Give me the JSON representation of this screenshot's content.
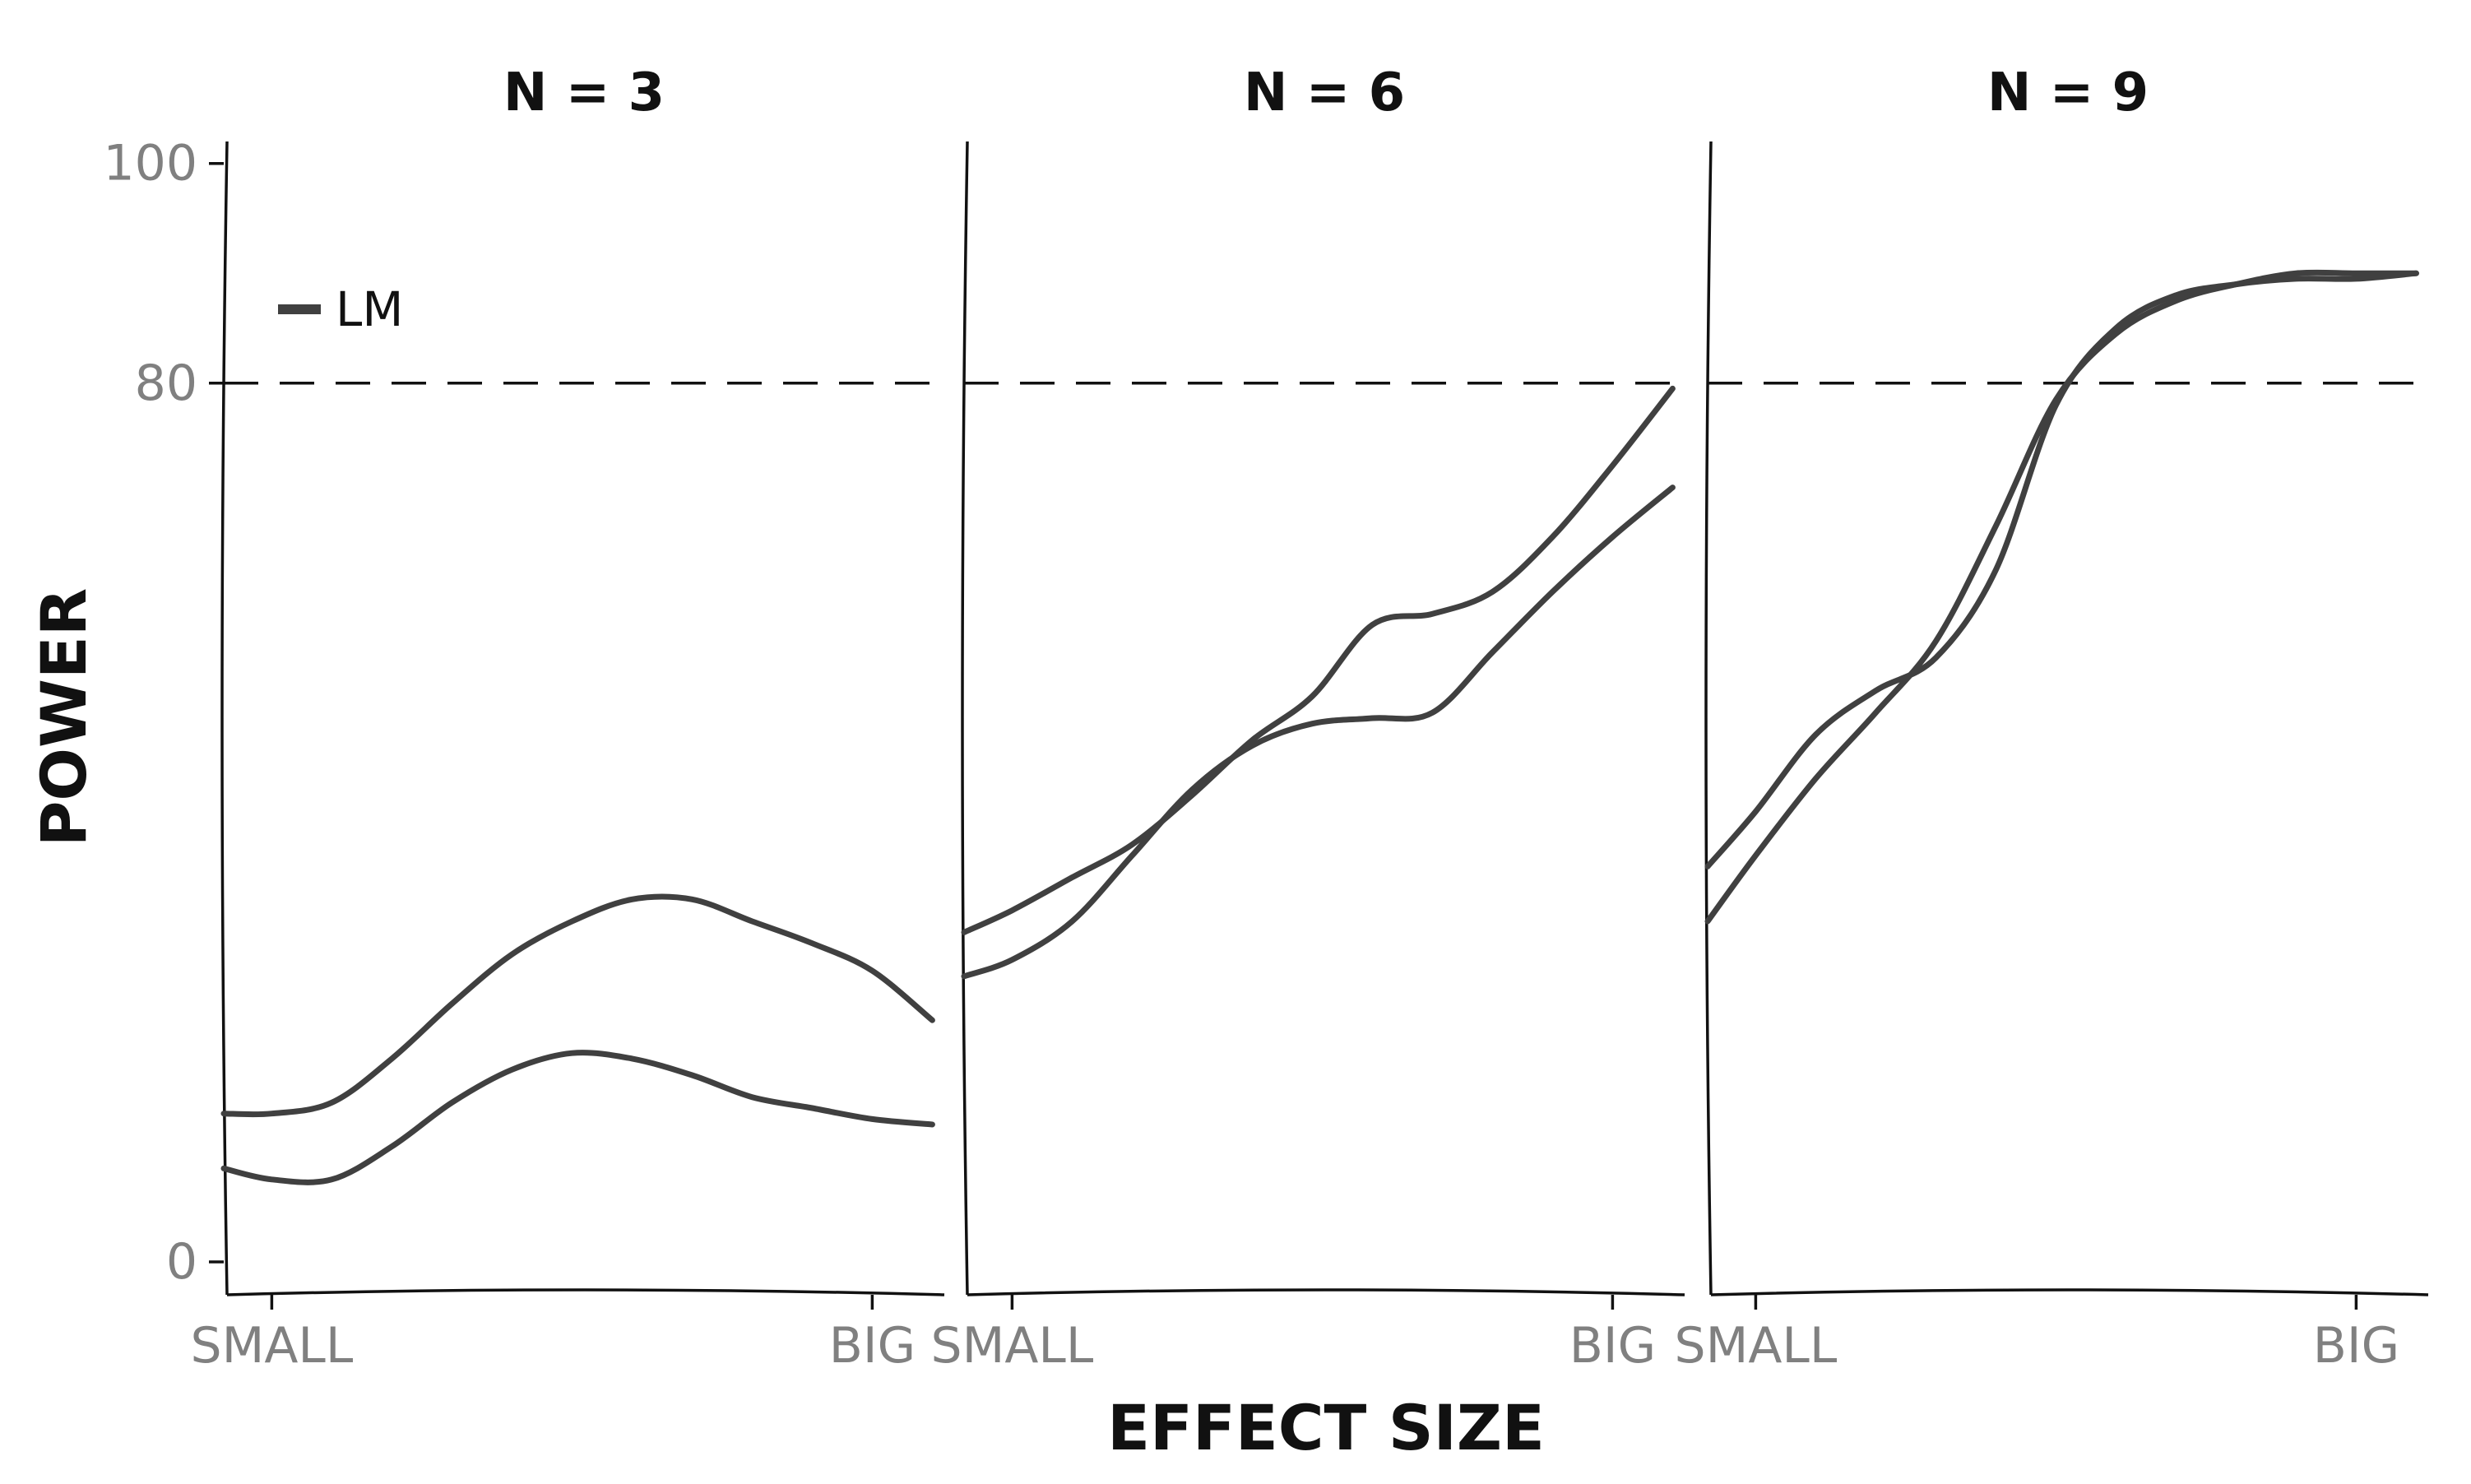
{
  "chart_data": {
    "type": "line",
    "xlabel": "EFFECT SIZE",
    "ylabel": "POWER",
    "y_ticks": [
      {
        "value": 0,
        "label": "0"
      },
      {
        "value": 80,
        "label": "80"
      },
      {
        "value": 100,
        "label": "100"
      }
    ],
    "x_ticks": [
      {
        "value": 0,
        "label": "SMALL"
      },
      {
        "value": 1,
        "label": "BIG"
      }
    ],
    "xlim": [
      -0.08,
      1.12
    ],
    "ylim": [
      -3,
      102
    ],
    "reference_line": {
      "y": 80,
      "style": "dashed",
      "color": "#111111"
    },
    "legend": {
      "entries": [
        "LM"
      ],
      "placement": "top-left",
      "color": "#404040"
    },
    "line_color": "#404040",
    "x": [
      -0.08,
      0.0,
      0.1,
      0.2,
      0.3,
      0.4,
      0.5,
      0.6,
      0.7,
      0.8,
      0.9,
      1.0,
      1.1
    ],
    "facets": [
      {
        "title": "N = 3",
        "series": [
          {
            "values": [
              13.5,
              13.5,
              14.5,
              18.5,
              23.5,
              28,
              31,
              33,
              33,
              31,
              29,
              26.5,
              22
            ]
          },
          {
            "values": [
              8.5,
              7.5,
              7.5,
              10.5,
              14.5,
              17.5,
              19,
              18.5,
              17,
              15,
              14,
              13,
              12.5
            ]
          }
        ]
      },
      {
        "title": "N = 6",
        "series": [
          {
            "values": [
              30,
              32,
              35,
              38,
              42.5,
              47.5,
              51.5,
              58,
              59,
              61,
              66,
              72.5,
              79.5
            ]
          },
          {
            "values": [
              26,
              27.5,
              31,
              37,
              43,
              47,
              49,
              49.5,
              50,
              55.5,
              61,
              66,
              70.5
            ]
          }
        ]
      },
      {
        "title": "N = 9",
        "series": [
          {
            "values": [
              36,
              41,
              48,
              52,
              55,
              63,
              78,
              85,
              88,
              89,
              89.5,
              89.5,
              90
            ]
          },
          {
            "values": [
              31,
              37,
              44,
              50,
              56.5,
              67,
              78.5,
              84.5,
              87.5,
              89,
              90,
              90,
              90
            ]
          }
        ]
      }
    ]
  }
}
